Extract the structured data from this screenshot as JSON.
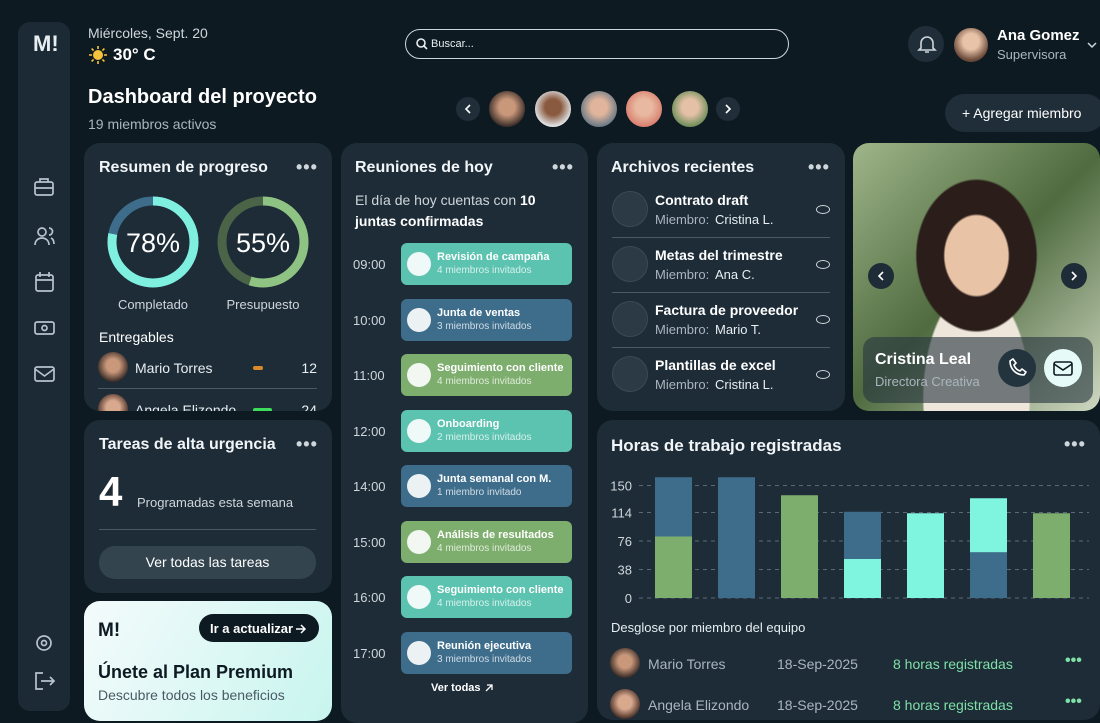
{
  "logo": "M!",
  "header": {
    "date": "Miércoles, Sept. 20",
    "temperature": "30° C",
    "search_placeholder": "Buscar...",
    "user_name": "Ana Gomez",
    "user_role": "Supervisora"
  },
  "project": {
    "title": "Dashboard del proyecto",
    "subtitle": "19 miembros activos",
    "add_button": "+ Agregar miembro"
  },
  "progress": {
    "title": "Resumen de progreso",
    "rings": [
      {
        "value": 78,
        "label": "78%",
        "caption": "Completado",
        "color": "#7ff0df"
      },
      {
        "value": 55,
        "label": "55%",
        "caption": "Presupuesto",
        "color": "#8fc383"
      }
    ],
    "deliverables_title": "Entregables",
    "deliverables": [
      {
        "name": "Mario Torres",
        "value": 12,
        "color": "#d98b2b"
      },
      {
        "name": "Angela Elizondo",
        "value": 24,
        "color": "#3ddc5a"
      }
    ]
  },
  "urgent": {
    "title": "Tareas de alta urgencia",
    "count": "4",
    "caption": "Programadas esta semana",
    "button": "Ver todas las tareas"
  },
  "premium": {
    "logo": "M!",
    "button": "Ir a actualizar",
    "title": "Únete al Plan Premium",
    "subtitle": "Descubre todos los beneficios"
  },
  "meetings": {
    "title": "Reuniones de hoy",
    "intro": "El día de hoy cuentas con",
    "intro_bold": "10 juntas confirmadas",
    "items": [
      {
        "time": "09:00",
        "title": "Revisión de campaña",
        "subtitle": "4 miembros invitados",
        "color": "#5cc3b0"
      },
      {
        "time": "10:00",
        "title": "Junta de ventas",
        "subtitle": "3 miembros invitados",
        "color": "#3e6d8c"
      },
      {
        "time": "11:00",
        "title": "Seguimiento con cliente",
        "subtitle": "4 miembros invitados",
        "color": "#7eae6d"
      },
      {
        "time": "12:00",
        "title": "Onboarding",
        "subtitle": "2 miembros invitados",
        "color": "#5cc3b0"
      },
      {
        "time": "14:00",
        "title": "Junta semanal con M.",
        "subtitle": "1 miembro invitado",
        "color": "#3e6d8c"
      },
      {
        "time": "15:00",
        "title": "Análisis de resultados",
        "subtitle": "4 miembros invitados",
        "color": "#7eae6d"
      },
      {
        "time": "16:00",
        "title": "Seguimiento con cliente",
        "subtitle": "4 miembros invitados",
        "color": "#5cc3b0"
      },
      {
        "time": "17:00",
        "title": "Reunión ejecutiva",
        "subtitle": "3 miembros invitados",
        "color": "#3e6d8c"
      }
    ],
    "link": "Ver todas"
  },
  "files": {
    "title": "Archivos recientes",
    "member_label": "Miembro:",
    "items": [
      {
        "title": "Contrato draft",
        "member": "Cristina L."
      },
      {
        "title": "Metas del trimestre",
        "member": "Ana C."
      },
      {
        "title": "Factura de proveedor",
        "member": "Mario T."
      },
      {
        "title": "Plantillas de excel",
        "member": "Cristina L."
      }
    ]
  },
  "profile": {
    "name": "Cristina Leal",
    "role": "Directora Creativa"
  },
  "hours": {
    "title": "Horas de trabajo registradas",
    "chart_data": {
      "type": "bar",
      "stacked": true,
      "ylim": [
        0,
        162
      ],
      "yticks": [
        0,
        38,
        76,
        114,
        150
      ],
      "grid": true,
      "bars": [
        [
          {
            "color": "#7eae6d",
            "value": 82
          },
          {
            "color": "#3e6d8c",
            "value": 79
          }
        ],
        [
          {
            "color": "#3e6d8c",
            "value": 161
          }
        ],
        [
          {
            "color": "#7eae6d",
            "value": 137
          }
        ],
        [
          {
            "color": "#7ff5e0",
            "value": 52
          },
          {
            "color": "#3e6d8c",
            "value": 63
          }
        ],
        [
          {
            "color": "#7ff5e0",
            "value": 113
          }
        ],
        [
          {
            "color": "#3e6d8c",
            "value": 61
          },
          {
            "color": "#7ff5e0",
            "value": 72
          }
        ],
        [
          {
            "color": "#7eae6d",
            "value": 113
          }
        ]
      ]
    },
    "breakdown_title": "Desglose por miembro del equipo",
    "rows": [
      {
        "name": "Mario Torres",
        "date": "18-Sep-2025",
        "hours": "8 horas registradas"
      },
      {
        "name": "Angela Elizondo",
        "date": "18-Sep-2025",
        "hours": "8 horas registradas"
      }
    ]
  }
}
